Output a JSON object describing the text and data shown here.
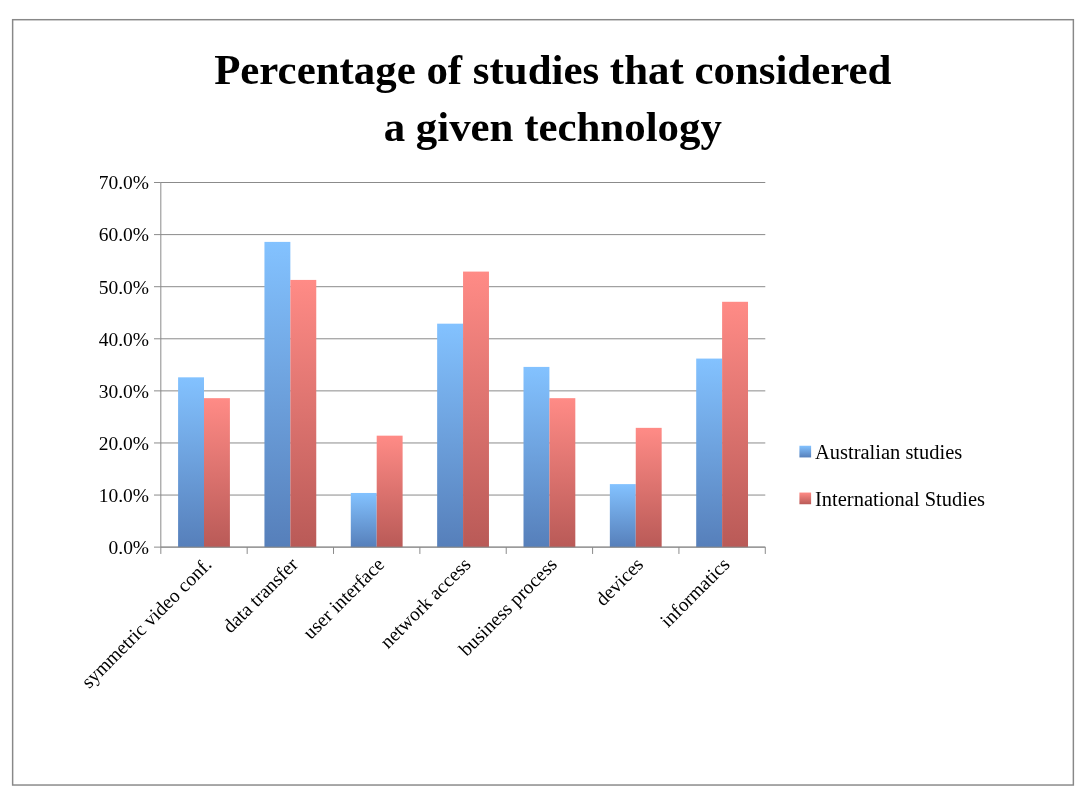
{
  "chart_data": {
    "type": "bar",
    "title": "Percentage of studies that considered\na given technology",
    "categories": [
      "symmetric video conf.",
      "data transfer",
      "user interface",
      "network access",
      "business process",
      "devices",
      "informatics"
    ],
    "series": [
      {
        "name": "Australian studies",
        "color": "#6a9de6",
        "values": [
          32.6,
          58.6,
          10.4,
          42.9,
          34.6,
          12.1,
          36.2
        ]
      },
      {
        "name": "International Studies",
        "color": "#e5706c",
        "values": [
          28.6,
          51.3,
          21.4,
          52.9,
          28.6,
          22.9,
          47.1
        ]
      }
    ],
    "ylim": [
      0,
      70
    ],
    "yticks": [
      {
        "value": 0,
        "label": "0.0%"
      },
      {
        "value": 10,
        "label": "10.0%"
      },
      {
        "value": 20,
        "label": "20.0%"
      },
      {
        "value": 30,
        "label": "30.0%"
      },
      {
        "value": 40,
        "label": "40.0%"
      },
      {
        "value": 50,
        "label": "50.0%"
      },
      {
        "value": 60,
        "label": "60.0%"
      },
      {
        "value": 70,
        "label": "70.0%"
      }
    ],
    "grid": "y",
    "legend": "right"
  }
}
